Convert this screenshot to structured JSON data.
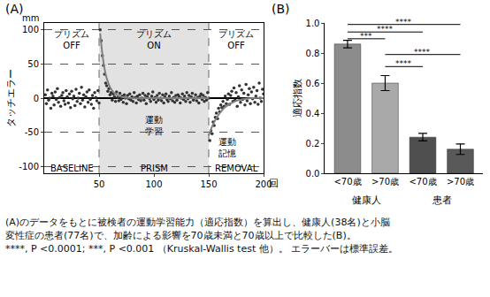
{
  "chart_data": [
    {
      "type": "scatter",
      "title": "(A)",
      "xlabel": "回",
      "ylabel": "タッチエラー",
      "yunit": "mm",
      "xlim": [
        0,
        200
      ],
      "xticks": [
        50,
        100,
        150,
        200
      ],
      "ylim": [
        -110,
        110
      ],
      "yticks": [
        -100,
        -50,
        0,
        50,
        100
      ],
      "grid": true,
      "shaded_region": [
        50,
        150
      ],
      "series": [
        {
          "type": "scatter",
          "color": "#333333",
          "x": [
            1,
            2,
            3,
            4,
            5,
            6,
            7,
            8,
            9,
            10,
            11,
            12,
            13,
            14,
            15,
            16,
            17,
            18,
            19,
            20,
            21,
            22,
            23,
            24,
            25,
            26,
            27,
            28,
            29,
            30,
            31,
            32,
            33,
            34,
            35,
            36,
            37,
            38,
            39,
            40,
            41,
            42,
            43,
            44,
            45,
            46,
            47,
            48,
            49,
            50,
            51,
            52,
            53,
            54,
            55,
            56,
            57,
            58,
            59,
            60,
            61,
            62,
            63,
            64,
            65,
            66,
            67,
            68,
            69,
            70,
            71,
            72,
            73,
            74,
            75,
            76,
            77,
            78,
            79,
            80,
            81,
            82,
            83,
            84,
            85,
            86,
            87,
            88,
            89,
            90,
            91,
            92,
            93,
            94,
            95,
            96,
            97,
            98,
            99,
            100,
            101,
            102,
            103,
            104,
            105,
            106,
            107,
            108,
            109,
            110,
            111,
            112,
            113,
            114,
            115,
            116,
            117,
            118,
            119,
            120,
            121,
            122,
            123,
            124,
            125,
            126,
            127,
            128,
            129,
            130,
            131,
            132,
            133,
            134,
            135,
            136,
            137,
            138,
            139,
            140,
            141,
            142,
            143,
            144,
            145,
            146,
            147,
            148,
            149,
            150,
            151,
            152,
            153,
            154,
            155,
            156,
            157,
            158,
            159,
            160,
            161,
            162,
            163,
            164,
            165,
            166,
            167,
            168,
            169,
            170,
            171,
            172,
            173,
            174,
            175,
            176,
            177,
            178,
            179,
            180,
            181,
            182,
            183,
            184,
            185,
            186,
            187,
            188,
            189,
            190,
            191,
            192,
            193,
            194,
            195,
            196,
            197,
            198,
            199,
            200
          ],
          "values": [
            5,
            -8,
            12,
            -3,
            0,
            -15,
            7,
            3,
            -10,
            9,
            -2,
            14,
            -6,
            1,
            -12,
            4,
            8,
            -4,
            -9,
            11,
            2,
            -7,
            6,
            -14,
            10,
            -1,
            3,
            -11,
            13,
            -5,
            0,
            7,
            -8,
            16,
            -3,
            5,
            -13,
            2,
            9,
            -6,
            12,
            -2,
            -9,
            4,
            -15,
            8,
            1,
            -4,
            11,
            -7,
            100,
            84,
            62,
            48,
            35,
            22,
            18,
            10,
            14,
            5,
            8,
            -3,
            6,
            2,
            -5,
            9,
            1,
            -4,
            7,
            -2,
            3,
            -6,
            5,
            0,
            -8,
            4,
            -1,
            6,
            -3,
            2,
            -5,
            8,
            1,
            -7,
            3,
            -2,
            5,
            -4,
            0,
            7,
            -3,
            4,
            -8,
            2,
            6,
            -1,
            -5,
            3,
            9,
            -2,
            1,
            -6,
            4,
            -3,
            7,
            0,
            -4,
            5,
            -7,
            2,
            6,
            -2,
            -5,
            3,
            -1,
            8,
            -4,
            1,
            -6,
            4,
            -3,
            5,
            2,
            -7,
            0,
            6,
            -2,
            3,
            -5,
            8,
            -1,
            4,
            -6,
            2,
            7,
            -3,
            0,
            5,
            -4,
            1,
            -7,
            3,
            6,
            -2,
            4,
            -5,
            1,
            -3,
            8,
            0,
            -62,
            -48,
            -52,
            -35,
            -40,
            -28,
            -22,
            -30,
            -15,
            -20,
            -10,
            -14,
            -5,
            -12,
            3,
            -8,
            -2,
            6,
            -9,
            4,
            10,
            -5,
            15,
            -3,
            8,
            -12,
            2,
            18,
            -6,
            12,
            -2,
            7,
            -10,
            20,
            -4,
            5,
            14,
            -8,
            9,
            -1,
            16,
            -6,
            3,
            11,
            -9,
            22,
            0,
            -5,
            13,
            6
          ]
        },
        {
          "type": "line",
          "color": "#808080",
          "x": [
            51,
            53,
            55,
            57,
            60,
            63,
            66,
            70,
            80,
            100,
            150
          ],
          "values": [
            95,
            65,
            43,
            29,
            16,
            9,
            5,
            2,
            0,
            0,
            0
          ]
        },
        {
          "type": "line",
          "color": "#808080",
          "x": [
            150,
            153,
            156,
            160,
            165,
            170,
            175,
            180,
            190,
            200
          ],
          "values": [
            -55,
            -42,
            -32,
            -22,
            -13,
            -8,
            -4,
            -2,
            0,
            0
          ]
        }
      ],
      "annotations": [
        {
          "text": "プリズム\nOFF",
          "x": 25,
          "y": 85
        },
        {
          "text": "プリズム\nON",
          "x": 100,
          "y": 85
        },
        {
          "text": "プリズム\nOFF",
          "x": 175,
          "y": 85
        },
        {
          "text": "運動\n学習",
          "x": 100,
          "y": -40
        },
        {
          "text": "運動\n記憶",
          "x": 167,
          "y": -72
        },
        {
          "text": "BASELINE",
          "x": 25,
          "y": -103
        },
        {
          "text": "PRISM",
          "x": 100,
          "y": -103
        },
        {
          "text": "REMOVAL",
          "x": 175,
          "y": -103
        }
      ]
    },
    {
      "type": "bar",
      "title": "(B)",
      "ylabel": "適応指数",
      "categories": [
        "<70歳",
        ">70歳",
        "<70歳",
        ">70歳"
      ],
      "values": [
        0.86,
        0.6,
        0.24,
        0.16
      ],
      "errors": [
        0.025,
        0.05,
        0.025,
        0.035
      ],
      "colors": [
        "#8c8c8c",
        "#a9a9a9",
        "#4f4f4f",
        "#595959"
      ],
      "ylim": [
        0,
        1
      ],
      "yticks": [
        {
          "value": 0,
          "label": "0.0"
        },
        {
          "value": 0.2,
          "label": "0.2"
        },
        {
          "value": 0.4,
          "label": "0.4"
        },
        {
          "value": 0.6,
          "label": "0.6"
        },
        {
          "value": 0.8,
          "label": "0.8"
        },
        {
          "value": 1,
          "label": "1.0"
        }
      ],
      "groups": [
        {
          "label": "健康人",
          "from": 0,
          "to": 1
        },
        {
          "label": "患者",
          "from": 2,
          "to": 3
        }
      ],
      "comparisons": [
        {
          "from": 0,
          "to": 3,
          "y": 0.99,
          "label": "****"
        },
        {
          "from": 0,
          "to": 2,
          "y": 0.94,
          "label": "****"
        },
        {
          "from": 0,
          "to": 1,
          "y": 0.895,
          "label": "***"
        },
        {
          "from": 1,
          "to": 3,
          "y": 0.79,
          "label": "****"
        },
        {
          "from": 1,
          "to": 2,
          "y": 0.71,
          "label": "****"
        }
      ]
    }
  ],
  "caption": [
    "(A)のデータをもとに被検者の運動学習能力（適応指数）を算出し、健康人(38名)と小脳",
    "変性症の患者(77名)で、加齢による影響を70歳未満と70歳以上で比較した(B)。",
    "****, P <0.0001; ***, P <0.001 （Kruskal-Wallis test 他）。 エラーバーは標準誤差。"
  ]
}
